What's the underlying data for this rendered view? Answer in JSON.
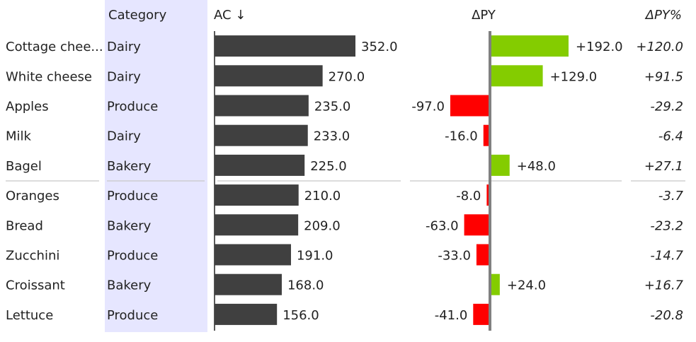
{
  "headers": {
    "category": "Category",
    "ac": "AC ↓",
    "dpy": "ΔPY",
    "dpy_pct": "ΔPY%"
  },
  "colors": {
    "ac_bar": "#404040",
    "positive": "#84cc00",
    "negative": "#ff0000",
    "axis": "#808080",
    "category_band": "#e6e6ff",
    "negative_text": "#ff0000",
    "separator": "#c8c8c8"
  },
  "chart_data": {
    "type": "bar",
    "categories": [
      "Cottage chee...",
      "White cheese",
      "Apples",
      "Milk",
      "Bagel",
      "Oranges",
      "Bread",
      "Zucchini",
      "Croissant",
      "Lettuce"
    ],
    "category_group": [
      "Dairy",
      "Dairy",
      "Produce",
      "Dairy",
      "Bakery",
      "Produce",
      "Bakery",
      "Produce",
      "Bakery",
      "Produce"
    ],
    "series": [
      {
        "name": "AC",
        "values": [
          352.0,
          270.0,
          235.0,
          233.0,
          225.0,
          210.0,
          209.0,
          191.0,
          168.0,
          156.0
        ],
        "labels": [
          "352.0",
          "270.0",
          "235.0",
          "233.0",
          "225.0",
          "210.0",
          "209.0",
          "191.0",
          "168.0",
          "156.0"
        ]
      },
      {
        "name": "ΔPY",
        "values": [
          192.0,
          129.0,
          -97.0,
          -16.0,
          48.0,
          -8.0,
          -63.0,
          -33.0,
          24.0,
          -41.0
        ],
        "labels": [
          "+192.0",
          "+129.0",
          "-97.0",
          "-16.0",
          "+48.0",
          "-8.0",
          "-63.0",
          "-33.0",
          "+24.0",
          "-41.0"
        ]
      },
      {
        "name": "ΔPY%",
        "values": [
          120.0,
          91.5,
          -29.2,
          -6.4,
          27.1,
          -3.7,
          -23.2,
          -14.7,
          16.7,
          -20.8
        ],
        "labels": [
          "+120.0",
          "+91.5",
          "-29.2",
          "-6.4",
          "+27.1",
          "-3.7",
          "-23.2",
          "-14.7",
          "+16.7",
          "-20.8"
        ]
      }
    ],
    "separator_after_index": 4
  }
}
